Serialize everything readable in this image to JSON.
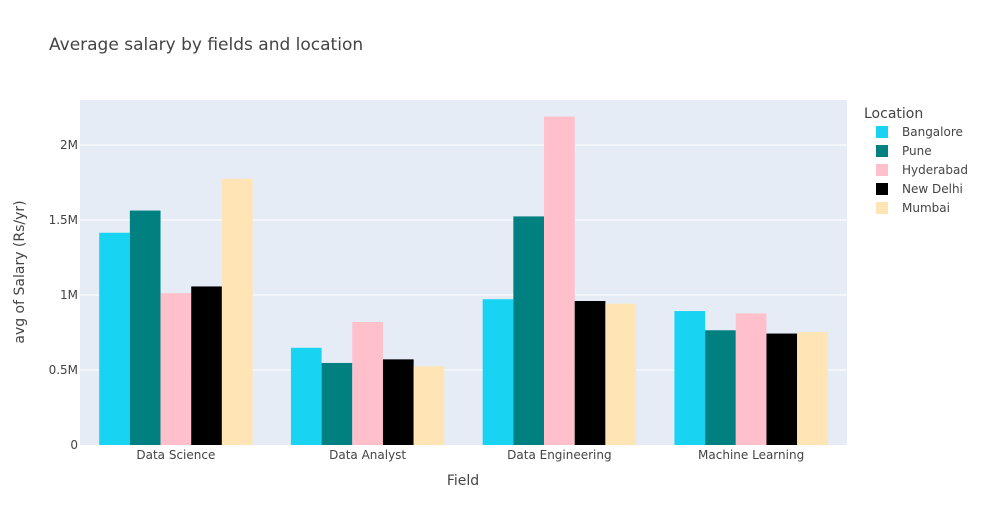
{
  "chart_data": {
    "type": "bar",
    "title": "Average salary by fields and location",
    "xlabel": "Field",
    "ylabel": "avg of Salary (Rs/yr)",
    "categories": [
      "Data Science",
      "Data Analyst",
      "Data Engineering",
      "Machine Learning"
    ],
    "ylim": [
      0,
      2300000
    ],
    "yticks": [
      0,
      500000,
      1000000,
      1500000,
      2000000
    ],
    "ytick_labels": [
      "0",
      "0.5M",
      "1M",
      "1.5M",
      "2M"
    ],
    "grid": true,
    "legend": {
      "title": "Location",
      "placement": "top-right"
    },
    "series": [
      {
        "name": "Bangalore",
        "color": "#19d3f3",
        "values": [
          1415000,
          648000,
          972000,
          893000
        ]
      },
      {
        "name": "Pune",
        "color": "#008080",
        "values": [
          1563000,
          547000,
          1524000,
          765000
        ]
      },
      {
        "name": "Hyderabad",
        "color": "#ffc0cb",
        "values": [
          1012000,
          820000,
          2190000,
          877000
        ]
      },
      {
        "name": "New Delhi",
        "color": "#000000",
        "values": [
          1057000,
          571000,
          960000,
          743000
        ]
      },
      {
        "name": "Mumbai",
        "color": "#ffe4b5",
        "values": [
          1775000,
          525000,
          942000,
          753000
        ]
      }
    ]
  }
}
